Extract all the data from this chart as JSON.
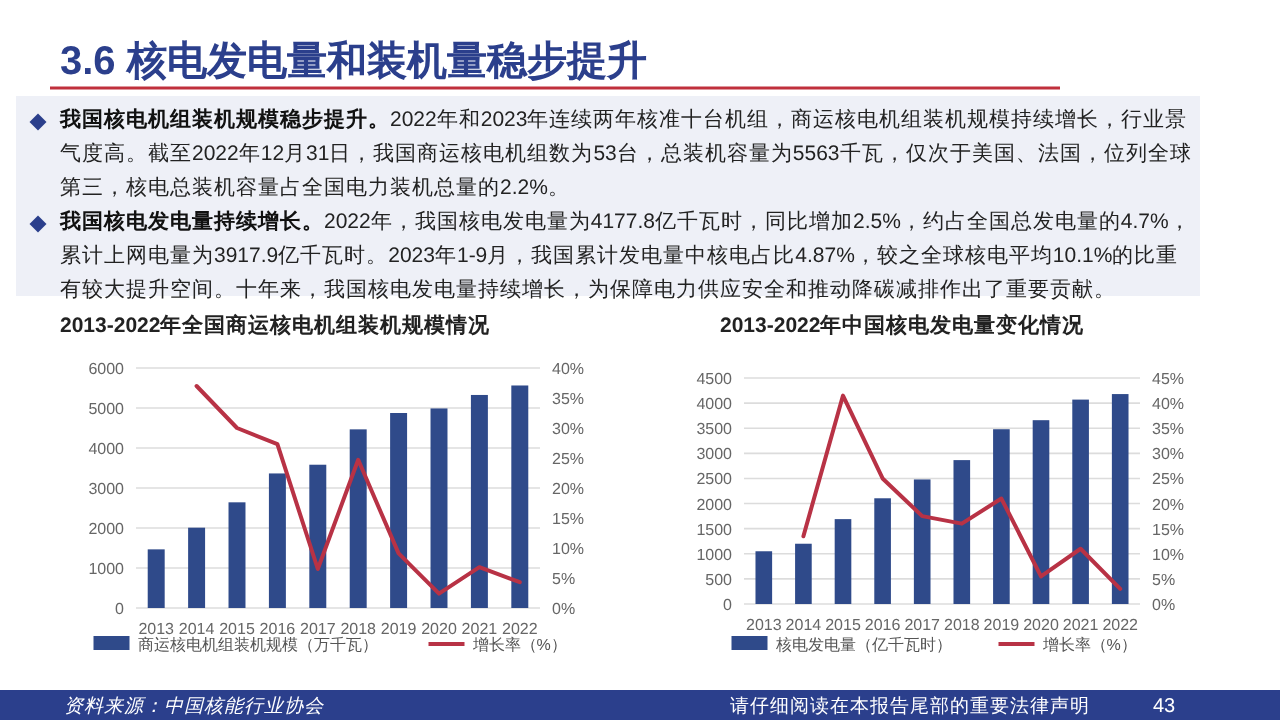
{
  "chart_data": [
    {
      "type": "other",
      "title": "3.6 核电发电量和装机量稳步提升",
      "annotations": [
        "我国核电机组装机规模稳步提升。",
        "2022年和2023年连续两年核准十台机组，商运核电机组装机规模持续增长，行业景气度高。截至2022年12月31日，我国商运核电机组数为53台，总装机容量为5563千瓦，仅次于美国、法国，位列全球第三，核电总装机容量占全国电力装机总量的2.2%。",
        "我国核电发电量持续增长。",
        "2022年，我国核电发电量为4177.8亿千瓦时，同比增加2.5%，约占全国总发电量的4.7%，累计上网电量为3917.9亿千瓦时。2023年1-9月，我国累计发电量中核电占比4.87%，较之全球核电平均10.1%的比重有较大提升空间。十年来，我国核电发电量持续增长，为保障电力供应安全和推动降碳减排作出了重要贡献。",
        "资料来源：中国核能行业协会",
        "请仔细阅读在本报告尾部的重要法律声明",
        "43"
      ]
    },
    {
      "type": "bar",
      "title": "2013-2022年全国商运核电机组装机规模情况",
      "categories": [
        "2013",
        "2014",
        "2015",
        "2016",
        "2017",
        "2018",
        "2019",
        "2020",
        "2021",
        "2022"
      ],
      "series": [
        {
          "name": "商运核电机组装机规模（万千瓦）",
          "color": "#2f4a8a",
          "values": [
            1466,
            2008,
            2642,
            3364,
            3582,
            4466,
            4875,
            4989,
            5326,
            5563
          ]
        },
        {
          "name": "增长率（%）",
          "type": "line",
          "axis": "y2",
          "color": "#b83245",
          "values": [
            null,
            37,
            30,
            27.3,
            6.5,
            24.7,
            9.1,
            2.4,
            6.8,
            4.3
          ]
        }
      ],
      "ylim": [
        0,
        6000
      ],
      "yticks": [
        0,
        1000,
        2000,
        3000,
        4000,
        5000,
        6000
      ],
      "y2lim": [
        0,
        40
      ],
      "y2ticks": [
        {
          "value": 0,
          "label": "0%"
        },
        {
          "value": 5,
          "label": "5%"
        },
        {
          "value": 10,
          "label": "10%"
        },
        {
          "value": 15,
          "label": "15%"
        },
        {
          "value": 20,
          "label": "20%"
        },
        {
          "value": 25,
          "label": "25%"
        },
        {
          "value": 30,
          "label": "30%"
        },
        {
          "value": 35,
          "label": "35%"
        },
        {
          "value": 40,
          "label": "40%"
        }
      ],
      "grid": "y",
      "legend": "bottom"
    },
    {
      "type": "bar",
      "title": "2013-2022年中国核电发电量变化情况",
      "categories": [
        "2013",
        "2014",
        "2015",
        "2016",
        "2017",
        "2018",
        "2019",
        "2020",
        "2021",
        "2022"
      ],
      "series": [
        {
          "name": "核电发电量（亿千瓦时）",
          "color": "#2f4a8a",
          "values": [
            1050,
            1200,
            1690,
            2105,
            2480,
            2865,
            3480,
            3660,
            4070,
            4180
          ]
        },
        {
          "name": "增长率（%）",
          "type": "line",
          "axis": "y2",
          "color": "#b83245",
          "values": [
            null,
            13.5,
            41.5,
            25,
            17.5,
            16,
            21,
            5.5,
            11,
            3
          ]
        }
      ],
      "ylim": [
        0,
        4500
      ],
      "yticks": [
        0,
        500,
        1000,
        1500,
        2000,
        2500,
        3000,
        3500,
        4000,
        4500
      ],
      "y2lim": [
        0,
        45
      ],
      "y2ticks": [
        {
          "value": 0,
          "label": "0%"
        },
        {
          "value": 5,
          "label": "5%"
        },
        {
          "value": 10,
          "label": "10%"
        },
        {
          "value": 15,
          "label": "15%"
        },
        {
          "value": 20,
          "label": "20%"
        },
        {
          "value": 25,
          "label": "25%"
        },
        {
          "value": 30,
          "label": "30%"
        },
        {
          "value": 35,
          "label": "35%"
        },
        {
          "value": 40,
          "label": "40%"
        },
        {
          "value": 45,
          "label": "45%"
        }
      ],
      "grid": "y",
      "legend": "bottom"
    }
  ]
}
